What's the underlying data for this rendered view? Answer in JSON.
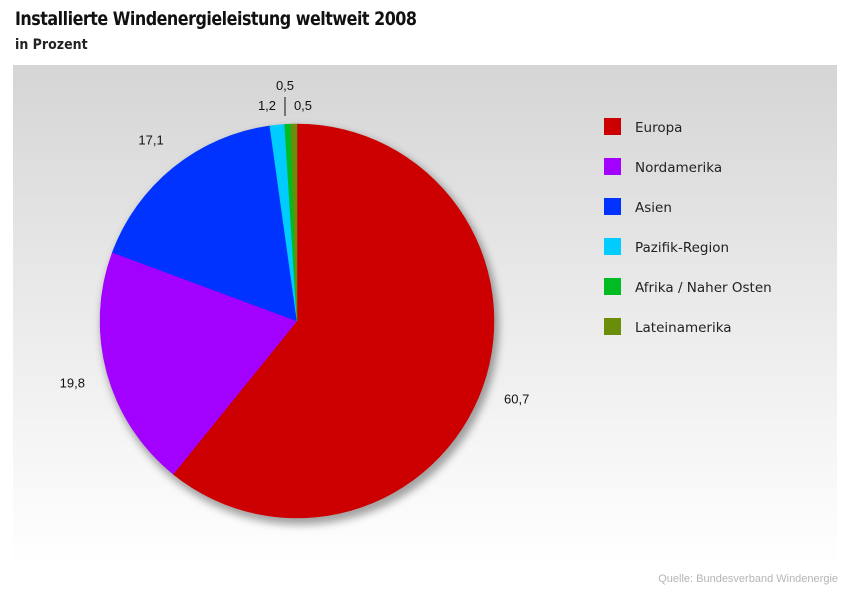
{
  "title": "Installierte Windenergieleistung weltweit 2008",
  "subtitle": "in Prozent",
  "source": "Quelle: Bundesverband Windenergie",
  "chart_data": {
    "type": "pie",
    "title": "Installierte Windenergieleistung weltweit 2008",
    "subtitle": "in Prozent",
    "legend_position": "right",
    "slices": [
      {
        "name": "Europa",
        "value": 60.7,
        "label": "60,7",
        "color": "#cc0000"
      },
      {
        "name": "Nordamerika",
        "value": 19.8,
        "label": "19,8",
        "color": "#a200ff"
      },
      {
        "name": "Asien",
        "value": 17.1,
        "label": "17,1",
        "color": "#0033ff"
      },
      {
        "name": "Pazifik-Region",
        "value": 1.2,
        "label": "1,2",
        "color": "#00ccff"
      },
      {
        "name": "Afrika / Naher Osten",
        "value": 0.5,
        "label": "0,5",
        "color": "#00bb22"
      },
      {
        "name": "Lateinamerika",
        "value": 0.5,
        "label": "0,5",
        "color": "#6b8e0a"
      }
    ]
  }
}
